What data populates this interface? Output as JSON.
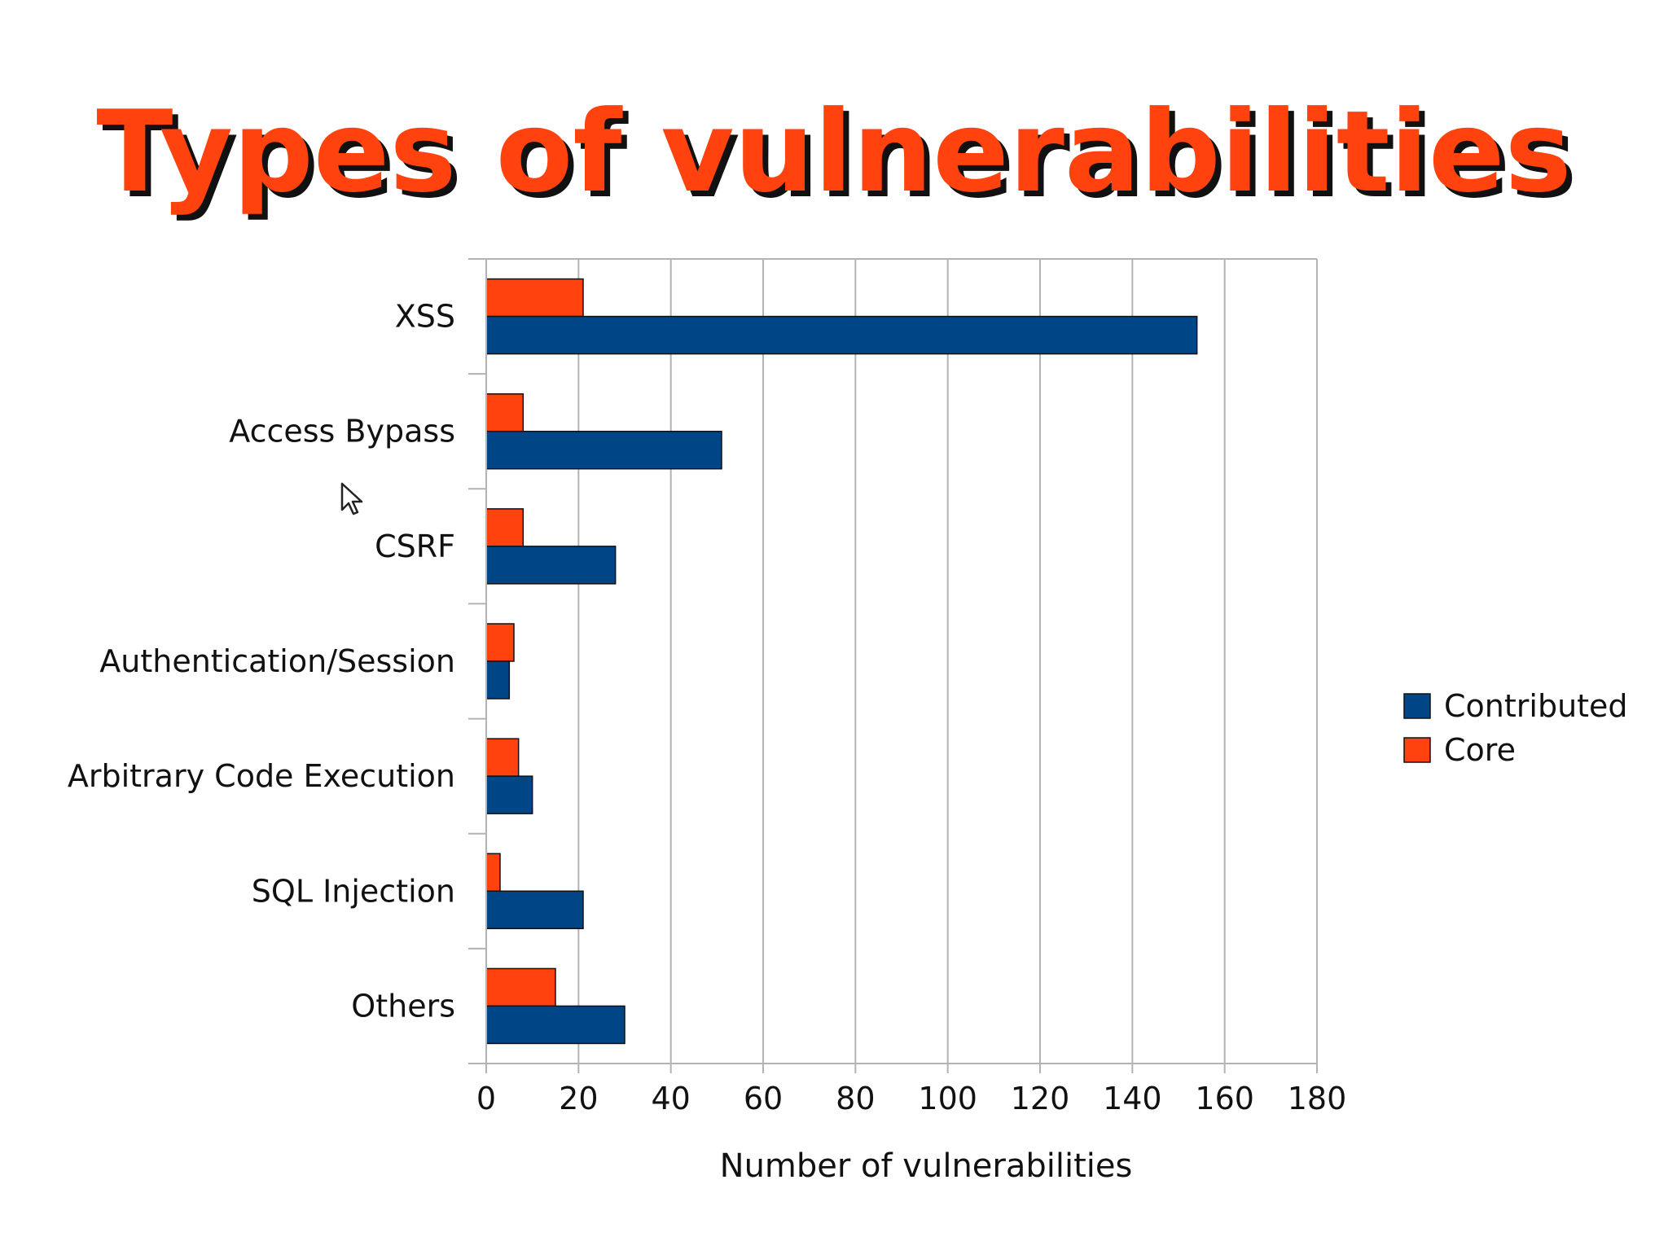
{
  "slide": {
    "title": "Types of vulnerabilities"
  },
  "colors": {
    "contributed": "#004586",
    "core": "#ff420e",
    "grid": "#b3b3b3"
  },
  "chart_data": {
    "type": "bar",
    "orientation": "horizontal",
    "categories": [
      "XSS",
      "Access Bypass",
      "CSRF",
      "Authentication/Session",
      "Arbitrary Code Execution",
      "SQL Injection",
      "Others"
    ],
    "series": [
      {
        "name": "Contributed",
        "values": [
          154,
          51,
          28,
          5,
          10,
          21,
          30
        ]
      },
      {
        "name": "Core",
        "values": [
          21,
          8,
          8,
          6,
          7,
          3,
          15
        ]
      }
    ],
    "xlabel": "Number of vulnerabilities",
    "ylabel": "",
    "xlim": [
      0,
      180
    ],
    "xticks": [
      "0",
      "20",
      "40",
      "60",
      "80",
      "100",
      "120",
      "140",
      "160",
      "180"
    ],
    "grid": "vertical",
    "legend": {
      "position": "right",
      "entries": [
        "Contributed",
        "Core"
      ]
    }
  }
}
